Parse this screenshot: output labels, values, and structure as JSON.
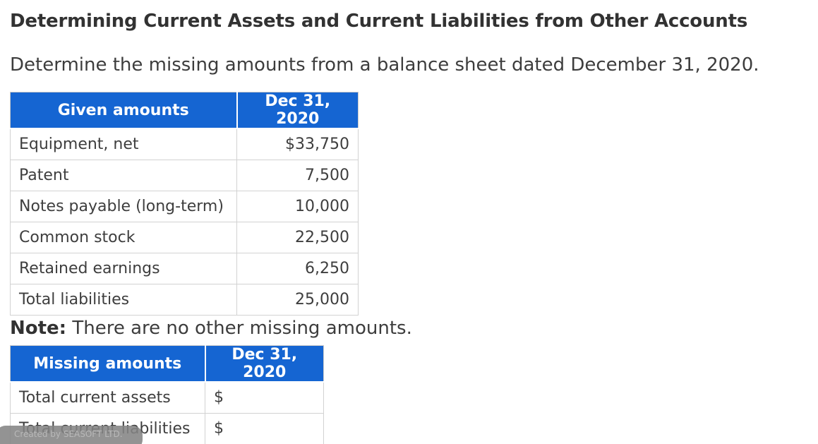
{
  "page": {
    "title": "Determining Current Assets and Current Liabilities from Other Accounts",
    "subtitle": "Determine the missing amounts from a balance sheet dated December 31, 2020.",
    "note_label": "Note:",
    "note_text": " There are no other missing amounts.",
    "watermark": "Created by SEASOFT LTD."
  },
  "given_table": {
    "headers": [
      "Given amounts",
      "Dec 31, 2020"
    ],
    "rows": [
      {
        "label": "Equipment, net",
        "value": "$33,750"
      },
      {
        "label": "Patent",
        "value": "7,500"
      },
      {
        "label": "Notes payable (long-term)",
        "value": "10,000"
      },
      {
        "label": "Common stock",
        "value": "22,500"
      },
      {
        "label": "Retained earnings",
        "value": "6,250"
      },
      {
        "label": "Total liabilities",
        "value": "25,000"
      }
    ]
  },
  "missing_table": {
    "headers": [
      "Missing amounts",
      "Dec 31, 2020"
    ],
    "rows": [
      {
        "label": "Total current assets",
        "prefix": "$",
        "input_value": ""
      },
      {
        "label": "Total current liabilities",
        "prefix": "$",
        "input_value": ""
      }
    ]
  },
  "colors": {
    "header_blue": "#1565d2",
    "input_cell_gray": "#efefef",
    "border_gray": "#d2d2d2",
    "text_dark": "#3d3d3d",
    "watermark_gray": "#848484"
  }
}
